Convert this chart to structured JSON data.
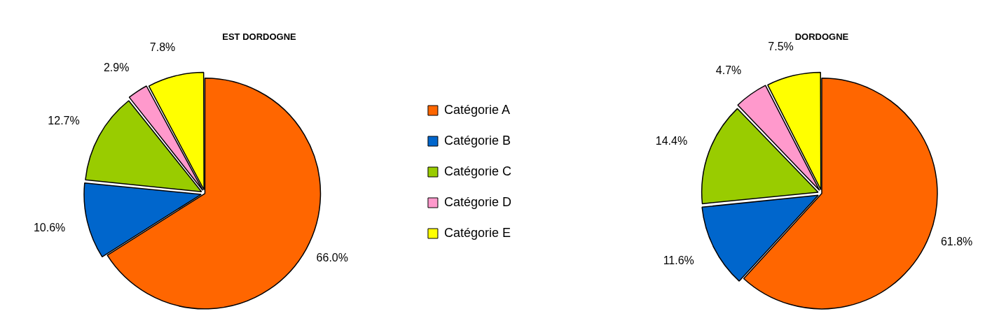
{
  "chart_data": [
    {
      "type": "pie",
      "title": "EST DORDOGNE",
      "categories": [
        "Catégorie A",
        "Catégorie B",
        "Catégorie C",
        "Catégorie D",
        "Catégorie E"
      ],
      "values": [
        66.0,
        10.6,
        12.7,
        2.9,
        7.8
      ],
      "colors": [
        "#ff6600",
        "#0066cc",
        "#99cc00",
        "#ff99cc",
        "#ffff00"
      ],
      "value_labels": [
        "66.0%",
        "10.6%",
        "12.7%",
        "2.9%",
        "7.8%"
      ],
      "legend": "right"
    },
    {
      "type": "pie",
      "title": "DORDOGNE",
      "categories": [
        null,
        null,
        null,
        null,
        null
      ],
      "values": [
        61.8,
        11.6,
        14.4,
        4.7,
        7.5
      ],
      "colors": [
        "#ff6600",
        "#0066cc",
        "#99cc00",
        "#ff99cc",
        "#ffff00"
      ],
      "value_labels": [
        "61.8%",
        "11.6%",
        "14.4%",
        "4.7%",
        "7.5%"
      ],
      "legend": false
    }
  ]
}
